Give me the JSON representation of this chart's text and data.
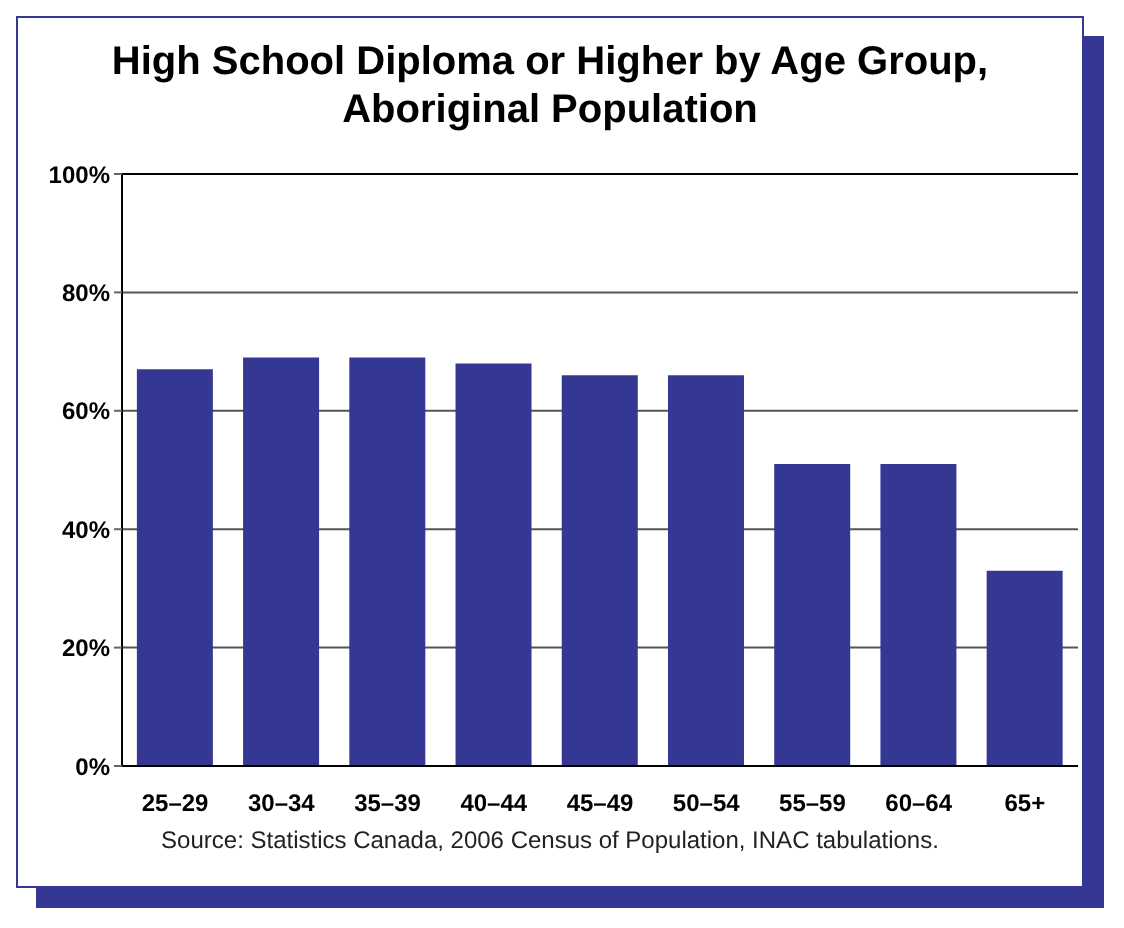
{
  "chart_data": {
    "type": "bar",
    "title": "High School Diploma or Higher by Age Group, Aboriginal Population",
    "categories": [
      "25–29",
      "30–34",
      "35–39",
      "40–44",
      "45–49",
      "50–54",
      "55–59",
      "60–64",
      "65+"
    ],
    "values": [
      67,
      69,
      69,
      68,
      66,
      66,
      51,
      51,
      33
    ],
    "color": "#343893",
    "ylim": [
      0,
      100
    ],
    "yticks": [
      {
        "value": 0,
        "label": "0%"
      },
      {
        "value": 20,
        "label": "20%"
      },
      {
        "value": 40,
        "label": "40%"
      },
      {
        "value": 60,
        "label": "60%"
      },
      {
        "value": 80,
        "label": "80%"
      },
      {
        "value": 100,
        "label": "100%"
      }
    ],
    "grid": "y",
    "annotations": [
      "Source: Statistics Canada, 2006 Census of Population, INAC tabulations."
    ]
  }
}
